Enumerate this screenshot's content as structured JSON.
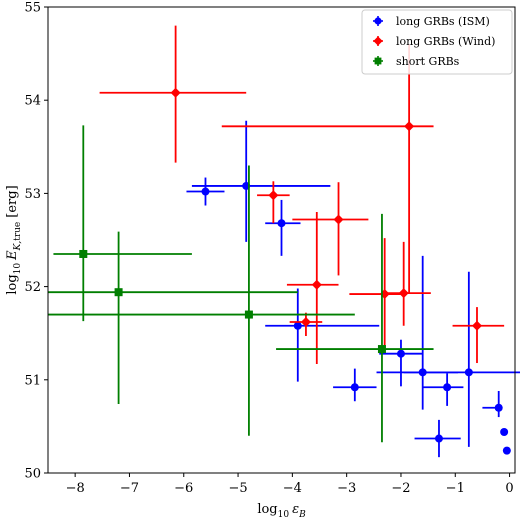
{
  "chart_data": {
    "type": "scatter",
    "title": "",
    "xlabel": "log₁₀ ε_B",
    "ylabel": "log₁₀ E_K,true [erg]",
    "xlim": [
      -8.5,
      0.1
    ],
    "ylim": [
      50,
      55
    ],
    "xticks": [
      -8,
      -7,
      -6,
      -5,
      -4,
      -3,
      -2,
      -1,
      0
    ],
    "yticks": [
      50,
      51,
      52,
      53,
      54,
      55
    ],
    "xtick_labels": [
      "−8",
      "−7",
      "−6",
      "−5",
      "−4",
      "−3",
      "−2",
      "−1",
      "0"
    ],
    "ytick_labels": [
      "50",
      "51",
      "52",
      "53",
      "54",
      "55"
    ],
    "grid": false,
    "legend_position": "top-right",
    "series": [
      {
        "name": "long GRBs (ISM)",
        "color": "#0000ff",
        "marker": "circle",
        "points": [
          {
            "x": -5.6,
            "y": 53.02,
            "xerr": [
              0.35,
              0.35
            ],
            "yerr": [
              0.15,
              0.15
            ]
          },
          {
            "x": -4.85,
            "y": 53.08,
            "xerr": [
              1.0,
              1.55
            ],
            "yerr": [
              0.6,
              0.7
            ]
          },
          {
            "x": -4.2,
            "y": 52.68,
            "xerr": [
              0.3,
              0.35
            ],
            "yerr": [
              0.35,
              0.25
            ]
          },
          {
            "x": -3.9,
            "y": 51.58,
            "xerr": [
              0.6,
              1.5
            ],
            "yerr": [
              0.6,
              0.4
            ]
          },
          {
            "x": -2.85,
            "y": 50.92,
            "xerr": [
              0.4,
              0.4
            ],
            "yerr": [
              0.15,
              0.2
            ]
          },
          {
            "x": -2.0,
            "y": 51.28,
            "xerr": [
              0.4,
              0.4
            ],
            "yerr": [
              0.35,
              0.15
            ]
          },
          {
            "x": -1.6,
            "y": 51.08,
            "xerr": [
              0.85,
              0.65
            ],
            "yerr": [
              0.4,
              1.25
            ]
          },
          {
            "x": -1.3,
            "y": 50.37,
            "xerr": [
              0.45,
              0.4
            ],
            "yerr": [
              0.2,
              0.2
            ]
          },
          {
            "x": -1.15,
            "y": 50.92,
            "xerr": [
              0.45,
              0.3
            ],
            "yerr": [
              0.2,
              0.15
            ]
          },
          {
            "x": -0.75,
            "y": 51.08,
            "xerr": [
              1.2,
              1.05
            ],
            "yerr": [
              0.8,
              1.08
            ]
          },
          {
            "x": -0.2,
            "y": 50.7,
            "xerr": [
              0.3,
              0.07
            ],
            "yerr": [
              0.1,
              0.18
            ]
          },
          {
            "x": -0.1,
            "y": 50.44,
            "xerr": [
              0.02,
              0.02
            ],
            "yerr": [
              0.02,
              0.02
            ]
          },
          {
            "x": -0.05,
            "y": 50.24,
            "xerr": [
              0.02,
              0.02
            ],
            "yerr": [
              0.02,
              0.02
            ]
          }
        ]
      },
      {
        "name": "long GRBs (Wind)",
        "color": "#ff0000",
        "marker": "diamond",
        "points": [
          {
            "x": -6.15,
            "y": 54.08,
            "xerr": [
              1.4,
              1.3
            ],
            "yerr": [
              0.75,
              0.72
            ]
          },
          {
            "x": -4.35,
            "y": 52.98,
            "xerr": [
              0.3,
              0.3
            ],
            "yerr": [
              0.3,
              0.15
            ]
          },
          {
            "x": -3.55,
            "y": 52.02,
            "xerr": [
              0.55,
              0.4
            ],
            "yerr": [
              0.85,
              0.78
            ]
          },
          {
            "x": -3.15,
            "y": 52.72,
            "xerr": [
              0.85,
              0.55
            ],
            "yerr": [
              0.6,
              0.4
            ]
          },
          {
            "x": -3.75,
            "y": 51.62,
            "xerr": [
              0.3,
              0.3
            ],
            "yerr": [
              0.15,
              0.1
            ]
          },
          {
            "x": -2.3,
            "y": 51.92,
            "xerr": [
              0.65,
              0.4
            ],
            "yerr": [
              0.6,
              0.6
            ]
          },
          {
            "x": -1.95,
            "y": 51.93,
            "xerr": [
              0.4,
              0.5
            ],
            "yerr": [
              0.35,
              0.55
            ]
          },
          {
            "x": -1.85,
            "y": 53.72,
            "xerr": [
              3.45,
              0.45
            ],
            "yerr": [
              1.8,
              0.88
            ]
          },
          {
            "x": -0.6,
            "y": 51.58,
            "xerr": [
              0.45,
              0.5
            ],
            "yerr": [
              0.4,
              0.2
            ]
          }
        ]
      },
      {
        "name": "short GRBs",
        "color": "#007f00",
        "marker": "square",
        "points": [
          {
            "x": -7.85,
            "y": 52.35,
            "xerr": [
              0.55,
              2.0
            ],
            "yerr": [
              0.72,
              1.38
            ]
          },
          {
            "x": -7.2,
            "y": 51.94,
            "xerr": [
              1.3,
              3.3
            ],
            "yerr": [
              1.2,
              0.65
            ]
          },
          {
            "x": -4.8,
            "y": 51.7,
            "xerr": [
              3.7,
              1.95
            ],
            "yerr": [
              1.3,
              1.6
            ]
          },
          {
            "x": -2.35,
            "y": 51.33,
            "xerr": [
              1.95,
              0.95
            ],
            "yerr": [
              1.0,
              1.45
            ]
          }
        ]
      }
    ]
  }
}
